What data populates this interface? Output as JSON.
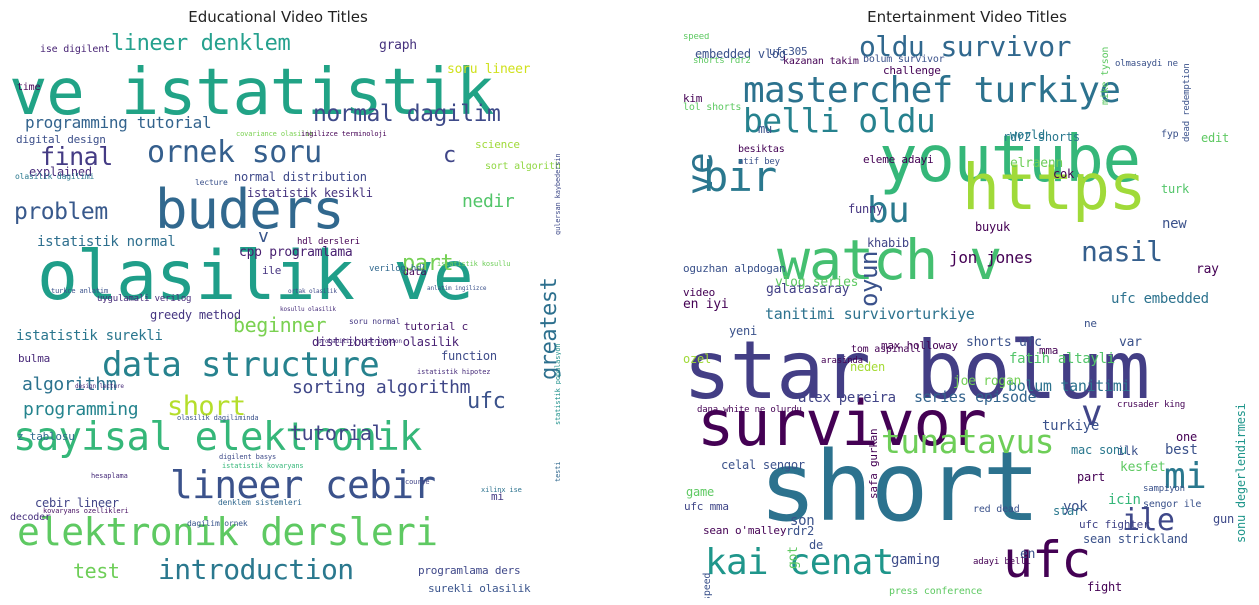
{
  "figure": {
    "panels": [
      {
        "title": "Educational Video Titles"
      },
      {
        "title": "Entertainment Video Titles"
      }
    ]
  },
  "clouds": {
    "educational": {
      "words": [
        {
          "t": "ve istatistik",
          "c": "#21a386"
        },
        {
          "t": "olasilik ve",
          "c": "#1f9e89"
        },
        {
          "t": "buders",
          "c": "#31688e"
        },
        {
          "t": "elektronik dersleri",
          "c": "#5ec962"
        },
        {
          "t": "sayisal elektronik",
          "c": "#35b779"
        },
        {
          "t": "lineer cebir",
          "c": "#3b528b"
        },
        {
          "t": "data structure",
          "c": "#26828e"
        },
        {
          "t": "ornek soru",
          "c": "#355f8d"
        },
        {
          "t": "introduction",
          "c": "#2a788e"
        },
        {
          "t": "lineer denklem",
          "c": "#25a18e"
        },
        {
          "t": "normal dagilim",
          "c": "#3e4a89"
        },
        {
          "t": "final",
          "c": "#443b84"
        },
        {
          "t": "problem",
          "c": "#38598c"
        },
        {
          "t": "short",
          "c": "#b5de2b"
        },
        {
          "t": "beginner",
          "c": "#7ad151"
        },
        {
          "t": "test",
          "c": "#6ece58"
        },
        {
          "t": "part",
          "c": "#75d054"
        },
        {
          "t": "tutorial",
          "c": "#414487"
        },
        {
          "t": "programming",
          "c": "#25848e"
        },
        {
          "t": "algorithm",
          "c": "#2c728e"
        },
        {
          "t": "sorting algorithm",
          "c": "#3f4788"
        },
        {
          "t": "ufc",
          "c": "#3b528b"
        },
        {
          "t": "greatest",
          "c": "#2d708e"
        },
        {
          "t": "nedir",
          "c": "#52c569"
        },
        {
          "t": "c",
          "c": "#404688"
        },
        {
          "t": "v",
          "c": "#39568c"
        },
        {
          "t": "programming tutorial",
          "c": "#33638d"
        },
        {
          "t": "istatistik surekli",
          "c": "#2a768e"
        },
        {
          "t": "istatistik normal",
          "c": "#2e6f8e"
        },
        {
          "t": "cpp programlama",
          "c": "#481f70"
        },
        {
          "t": "istatistik kesikli",
          "c": "#46337e"
        },
        {
          "t": "normal distribution",
          "c": "#3e4989"
        },
        {
          "t": "distribution olasilik",
          "c": "#482173"
        },
        {
          "t": "digital design",
          "c": "#3c4f8a"
        },
        {
          "t": "greedy method",
          "c": "#453581"
        },
        {
          "t": "function",
          "c": "#3e4c8a"
        },
        {
          "t": "explained",
          "c": "#472d7b"
        },
        {
          "t": "graph",
          "c": "#46327e"
        },
        {
          "t": "soru lineer",
          "c": "#d0e11c"
        },
        {
          "t": "time",
          "c": "#440154"
        },
        {
          "t": "cebir lineer",
          "c": "#414487"
        },
        {
          "t": "science",
          "c": "#a0da39"
        },
        {
          "t": "tutorial c",
          "c": "#48186a"
        },
        {
          "t": "programlama ders",
          "c": "#3f4889"
        },
        {
          "t": "surekli olasilik",
          "c": "#3a548c"
        },
        {
          "t": "sort algorithm",
          "c": "#90d743"
        },
        {
          "t": "z tablosu",
          "c": "#2f6b8e"
        },
        {
          "t": "bulma",
          "c": "#482979"
        },
        {
          "t": "decoder",
          "c": "#46307e"
        },
        {
          "t": "ile",
          "c": "#463480"
        },
        {
          "t": "data",
          "c": "#440154"
        },
        {
          "t": "mi",
          "c": "#443983"
        },
        {
          "t": "hdl dersleri",
          "c": "#440154"
        },
        {
          "t": "soru normal",
          "c": "#453882"
        },
        {
          "t": "verilog hdl",
          "c": "#31688e"
        },
        {
          "t": "uygulamali verilog",
          "c": "#472c7a"
        },
        {
          "t": "ise digilent",
          "c": "#482475"
        },
        {
          "t": "lecture",
          "c": "#3b528b"
        },
        {
          "t": "olasilik dagilimi",
          "c": "#2a788e"
        },
        {
          "t": "olasilik dagiliminda",
          "c": "#3b528b"
        },
        {
          "t": "dagilim ornek",
          "c": "#39568c"
        },
        {
          "t": "denklem sistemleri",
          "c": "#31688e"
        },
        {
          "t": "istatistik kovaryans",
          "c": "#35b779"
        },
        {
          "t": "istatistik hipotez",
          "c": "#472c7a"
        },
        {
          "t": "xilinx ise",
          "c": "#2c728e"
        },
        {
          "t": "digilent basys",
          "c": "#3e4a89"
        },
        {
          "t": "course",
          "c": "#414487"
        },
        {
          "t": "kovaryans ozellikleri",
          "c": "#471063"
        },
        {
          "t": "turkce anlatim",
          "c": "#3b528b"
        },
        {
          "t": "testi",
          "c": "#31688e"
        },
        {
          "t": "istatistik kosullu",
          "c": "#6ece58"
        },
        {
          "t": "statistik populasyon",
          "c": "#21918c"
        },
        {
          "t": "gulersan kaybedersin",
          "c": "#3e4a89"
        },
        {
          "t": "covariance olasilik",
          "c": "#7ad151"
        },
        {
          "t": "ingilizce terminoloji",
          "c": "#440154"
        },
        {
          "t": "probability distribution",
          "c": "#472c7a"
        },
        {
          "t": "anlatim ingilizce",
          "c": "#3b528b"
        },
        {
          "t": "kosullu olasilik",
          "c": "#472d7b"
        },
        {
          "t": "design lecture",
          "c": "#472c7a"
        },
        {
          "t": "ortak olasilik",
          "c": "#3e4a89"
        },
        {
          "t": "hesaplama",
          "c": "#472c7a"
        }
      ]
    },
    "entertainment": {
      "words": [
        {
          "t": "star bolum",
          "c": "#433e85"
        },
        {
          "t": "short",
          "c": "#2c728e"
        },
        {
          "t": "survivor",
          "c": "#440154"
        },
        {
          "t": "youtube",
          "c": "#35b779"
        },
        {
          "t": "watch v",
          "c": "#44bf70"
        },
        {
          "t": "https",
          "c": "#a0da39"
        },
        {
          "t": "masterchef turkiye",
          "c": "#2c728e"
        },
        {
          "t": "ve",
          "c": "#2b748e"
        },
        {
          "t": "ufc",
          "c": "#440154"
        },
        {
          "t": "kai cenat",
          "c": "#1f968b"
        },
        {
          "t": "tunatavus",
          "c": "#6ece58"
        },
        {
          "t": "oldu survivor",
          "c": "#31688e"
        },
        {
          "t": "belli oldu",
          "c": "#26828e"
        },
        {
          "t": "bir",
          "c": "#2a788e"
        },
        {
          "t": "bu",
          "c": "#29798e"
        },
        {
          "t": "nasil",
          "c": "#355f8d"
        },
        {
          "t": "ile",
          "c": "#3f4889"
        },
        {
          "t": "mi",
          "c": "#2a788e"
        },
        {
          "t": "v",
          "c": "#404588"
        },
        {
          "t": "oyun",
          "c": "#3b528b"
        },
        {
          "t": "tanitimi survivorturkiye",
          "c": "#2c728e"
        },
        {
          "t": "jon jones",
          "c": "#440154"
        },
        {
          "t": "alex pereira",
          "c": "#414487"
        },
        {
          "t": "series episode",
          "c": "#33638d"
        },
        {
          "t": "bolum tanitimi",
          "c": "#2c728e"
        },
        {
          "t": "galatasaray",
          "c": "#424086"
        },
        {
          "t": "fatih altayli",
          "c": "#52c569"
        },
        {
          "t": "shorts ufc",
          "c": "#3b528b"
        },
        {
          "t": "ufc embedded",
          "c": "#2c728e"
        },
        {
          "t": "vlog series",
          "c": "#5ec962"
        },
        {
          "t": "celal sengor",
          "c": "#3b528b"
        },
        {
          "t": "joe rogan",
          "c": "#73d056"
        },
        {
          "t": "embedded vlog",
          "c": "#3b528b"
        },
        {
          "t": "elraenn",
          "c": "#6ece58"
        },
        {
          "t": "rdr2 shorts",
          "c": "#2a788e"
        },
        {
          "t": "gaming",
          "c": "#3e4c8a"
        },
        {
          "t": "kesfet",
          "c": "#5ec962"
        },
        {
          "t": "khabib",
          "c": "#414487"
        },
        {
          "t": "world",
          "c": "#29798e"
        },
        {
          "t": "oguzhan alpdogan",
          "c": "#3b528b"
        },
        {
          "t": "en iyi",
          "c": "#440154"
        },
        {
          "t": "funny",
          "c": "#453581"
        },
        {
          "t": "buyuk",
          "c": "#440154"
        },
        {
          "t": "neden",
          "c": "#a5db36"
        },
        {
          "t": "yeni",
          "c": "#3b528b"
        },
        {
          "t": "video",
          "c": "#440154"
        },
        {
          "t": "ozel",
          "c": "#a0da39"
        },
        {
          "t": "game",
          "c": "#5ec962"
        },
        {
          "t": "ufc mma",
          "c": "#404688"
        },
        {
          "t": "rdr2",
          "c": "#3b528b"
        },
        {
          "t": "star",
          "c": "#2a788e"
        },
        {
          "t": "ufc fighter",
          "c": "#414487"
        },
        {
          "t": "sean strickland",
          "c": "#3b528b"
        },
        {
          "t": "sonu degerlendirmesi",
          "c": "#1f968b"
        },
        {
          "t": "fight",
          "c": "#440154"
        },
        {
          "t": "icin",
          "c": "#35b779"
        },
        {
          "t": "gun",
          "c": "#3e4989"
        },
        {
          "t": "best",
          "c": "#3b528b"
        },
        {
          "t": "part",
          "c": "#440154"
        },
        {
          "t": "one",
          "c": "#440154"
        },
        {
          "t": "turk",
          "c": "#52c569"
        },
        {
          "t": "edit",
          "c": "#5ec962"
        },
        {
          "t": "new",
          "c": "#3b528b"
        },
        {
          "t": "ray",
          "c": "#440154"
        },
        {
          "t": "mu",
          "c": "#3b528b"
        },
        {
          "t": "kim",
          "c": "#440154"
        },
        {
          "t": "mma",
          "c": "#440154"
        },
        {
          "t": "var",
          "c": "#3b528b"
        },
        {
          "t": "son",
          "c": "#3b528b"
        },
        {
          "t": "cok",
          "c": "#440154"
        },
        {
          "t": "ilk",
          "c": "#3b528b"
        },
        {
          "t": "de",
          "c": "#3b528b"
        },
        {
          "t": "got",
          "c": "#5ec962"
        },
        {
          "t": "turkiye",
          "c": "#3b528b"
        },
        {
          "t": "mac sonu",
          "c": "#2a788e"
        },
        {
          "t": "en",
          "c": "#3b528b"
        },
        {
          "t": "yok",
          "c": "#3b528b"
        },
        {
          "t": "ne",
          "c": "#3b528b"
        },
        {
          "t": "max holloway",
          "c": "#440154"
        },
        {
          "t": "tom aspinall",
          "c": "#440154"
        },
        {
          "t": "lol shorts",
          "c": "#5ec962"
        },
        {
          "t": "ufc305",
          "c": "#3b528b"
        },
        {
          "t": "kazanan takim",
          "c": "#440154"
        },
        {
          "t": "bolum survivor",
          "c": "#3b528b"
        },
        {
          "t": "challenge",
          "c": "#440154"
        },
        {
          "t": "fyp",
          "c": "#3b528b"
        },
        {
          "t": "besiktas",
          "c": "#440154"
        },
        {
          "t": "eleme adayi",
          "c": "#440154"
        },
        {
          "t": "atif bey",
          "c": "#3b528b"
        },
        {
          "t": "ishowspeed",
          "c": "#3b528b"
        },
        {
          "t": "press conference",
          "c": "#5ec962"
        },
        {
          "t": "sean o'malley",
          "c": "#440154"
        },
        {
          "t": "crusader king",
          "c": "#440154"
        },
        {
          "t": "dana white ne olurdu",
          "c": "#440154"
        },
        {
          "t": "red dead",
          "c": "#3b528b"
        },
        {
          "t": "adayi belli",
          "c": "#440154"
        },
        {
          "t": "sampiyon",
          "c": "#3b528b"
        },
        {
          "t": "sengor ile",
          "c": "#3b528b"
        },
        {
          "t": "arasinda",
          "c": "#440154"
        },
        {
          "t": "mike tyson",
          "c": "#5ec962"
        },
        {
          "t": "olmasaydi ne",
          "c": "#3b528b"
        },
        {
          "t": "safa gurkan",
          "c": "#440154"
        },
        {
          "t": "dead redemption",
          "c": "#3b528b"
        },
        {
          "t": "shorts rdr2",
          "c": "#5ec962"
        },
        {
          "t": "speed",
          "c": "#5ec962"
        }
      ]
    }
  }
}
